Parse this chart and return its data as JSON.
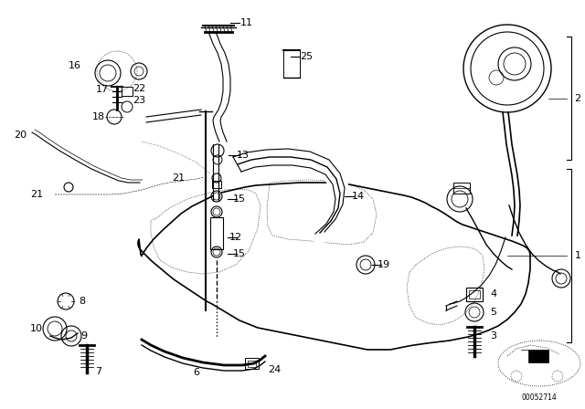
{
  "bg_color": "#ffffff",
  "line_color": "#000000",
  "diagram_number": "00052714",
  "font_size_num": 8.0,
  "line_width": 0.8
}
